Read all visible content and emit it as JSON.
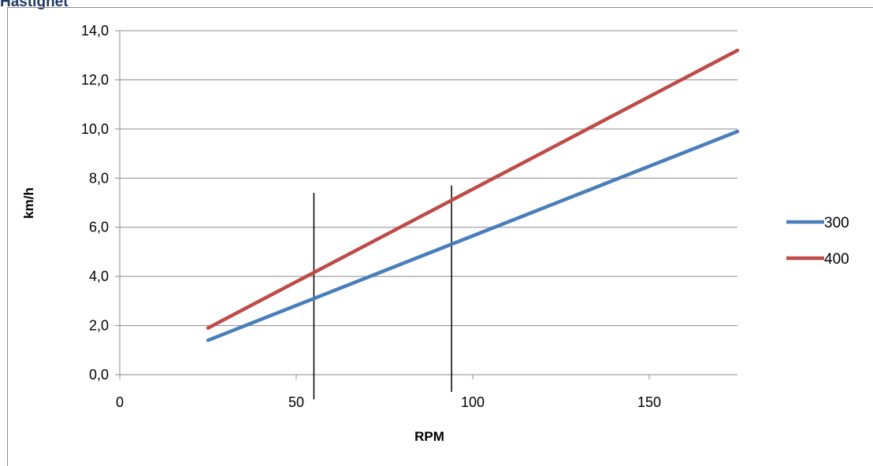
{
  "header": {
    "title": "Hastighet"
  },
  "chart_data": {
    "type": "line",
    "title": "",
    "xlabel": "RPM",
    "ylabel": "km/h",
    "xlim": [
      0,
      175
    ],
    "ylim": [
      0,
      14
    ],
    "xticks": [
      0,
      50,
      100,
      150
    ],
    "xtick_labels": [
      "0",
      "50",
      "100",
      "150"
    ],
    "yticks": [
      0,
      2,
      4,
      6,
      8,
      10,
      12,
      14
    ],
    "ytick_labels": [
      "0,0",
      "2,0",
      "4,0",
      "6,0",
      "8,0",
      "10,0",
      "12,0",
      "14,0"
    ],
    "grid": "horizontal",
    "legend_position": "right",
    "series": [
      {
        "name": "300",
        "color": "#4a7ebb",
        "x": [
          25,
          175
        ],
        "y": [
          1.4,
          9.9
        ]
      },
      {
        "name": "400",
        "color": "#be4b48",
        "x": [
          25,
          175
        ],
        "y": [
          1.9,
          13.2
        ]
      }
    ],
    "reference_lines": [
      {
        "x": 55,
        "y_range": [
          -1.0,
          7.4
        ]
      },
      {
        "x": 94,
        "y_range": [
          -0.7,
          7.7
        ]
      }
    ]
  }
}
